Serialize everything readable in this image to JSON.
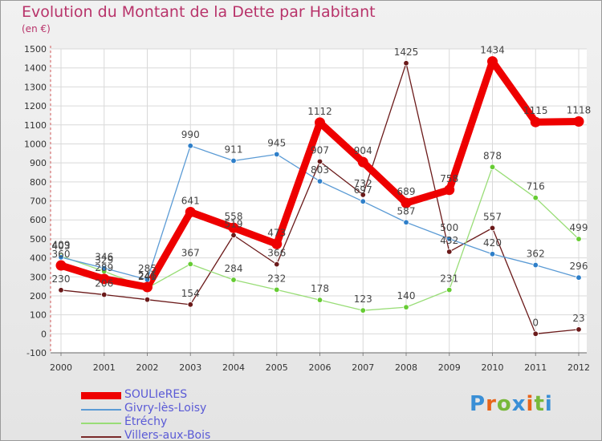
{
  "chart_data": {
    "type": "line",
    "title": "Evolution du Montant de la Dette par Habitant",
    "subtitle": "(en €)",
    "xlabel": "",
    "ylabel": "",
    "categories": [
      "2000",
      "2001",
      "2002",
      "2003",
      "2004",
      "2005",
      "2006",
      "2007",
      "2008",
      "2009",
      "2010",
      "2011",
      "2012"
    ],
    "ylim": [
      -100,
      1500
    ],
    "yticks": [
      -100,
      0,
      100,
      200,
      300,
      400,
      500,
      600,
      700,
      800,
      900,
      1000,
      1100,
      1200,
      1300,
      1400,
      1500
    ],
    "grid": true,
    "legend_position": "bottom-left",
    "series": [
      {
        "name": "Villers-aux-Bois",
        "color": "#6b1a1a",
        "marker_color": "#6b1a1a",
        "values": [
          230,
          206,
          180,
          154,
          519,
          366,
          907,
          732,
          1425,
          432,
          557,
          0,
          23
        ],
        "labels": [
          "230",
          "206",
          "",
          "154",
          "519",
          "366",
          "907",
          "732",
          "1425",
          "432",
          "557",
          "0",
          "23"
        ]
      },
      {
        "name": "Étréchy",
        "color": "#99dd77",
        "marker_color": "#66cc33",
        "values": [
          409,
          329,
          241,
          367,
          284,
          232,
          178,
          123,
          140,
          231,
          878,
          716,
          499
        ],
        "labels": [
          "409",
          "329",
          "241",
          "367",
          "284",
          "232",
          "178",
          "123",
          "140",
          "231",
          "878",
          "716",
          "499"
        ]
      },
      {
        "name": "Givry-lès-Loisy",
        "color": "#5b9bd5",
        "marker_color": "#2e7fc9",
        "values": [
          403,
          346,
          285,
          990,
          911,
          945,
          803,
          697,
          587,
          500,
          420,
          362,
          296
        ],
        "labels": [
          "403",
          "346",
          "285",
          "990",
          "911",
          "945",
          "803",
          "697",
          "587",
          "500",
          "420",
          "362",
          "296"
        ]
      },
      {
        "name": "SOULIeRES",
        "color": "#ee0000",
        "marker_color": "#ee0000",
        "values": [
          360,
          289,
          246,
          641,
          558,
          473,
          1112,
          904,
          689,
          758,
          1434,
          1115,
          1118
        ],
        "labels": [
          "360",
          "289",
          "246",
          "641",
          "558",
          "473",
          "1112",
          "904",
          "689",
          "758",
          "1434",
          "1115",
          "1118"
        ]
      }
    ]
  },
  "legend": [
    {
      "name": "SOULIeRES",
      "color": "#ee0000",
      "thickness": "heavy"
    },
    {
      "name": "Givry-lès-Loisy",
      "color": "#5b9bd5",
      "thickness": "thin"
    },
    {
      "name": "Étréchy",
      "color": "#99dd77",
      "thickness": "thin"
    },
    {
      "name": "Villers-aux-Bois",
      "color": "#7a2a2a",
      "thickness": "thin"
    }
  ],
  "logo": {
    "text": "Proxiti",
    "letters": [
      {
        "ch": "P",
        "color": "#3a8fd6"
      },
      {
        "ch": "r",
        "color": "#e8641a"
      },
      {
        "ch": "o",
        "color": "#78b83a"
      },
      {
        "ch": "x",
        "color": "#3a8fd6"
      },
      {
        "ch": "i",
        "color": "#e8641a"
      },
      {
        "ch": "t",
        "color": "#78b83a"
      },
      {
        "ch": "i",
        "color": "#3a8fd6"
      }
    ]
  }
}
